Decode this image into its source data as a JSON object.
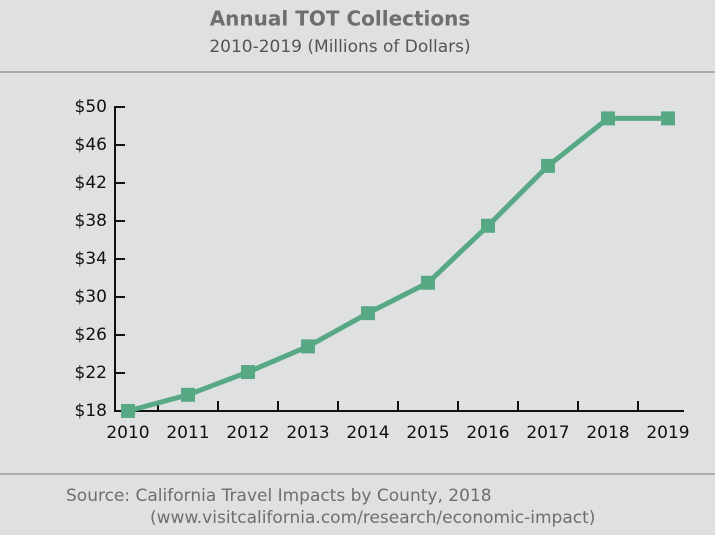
{
  "chart_data": {
    "type": "line",
    "title": "Annual TOT Collections",
    "subtitle": "2010-2019 (Millions of Dollars)",
    "source": [
      "Source: California Travel Impacts by County, 2018",
      "(www.visitcalifornia.com/research/economic-impact)"
    ],
    "categories": [
      "2010",
      "2011",
      "2012",
      "2013",
      "2014",
      "2015",
      "2016",
      "2017",
      "2018",
      "2019"
    ],
    "series": [
      {
        "name": "Annual TOT Collections",
        "color": "#57a884",
        "values": [
          18,
          19.7,
          22.1,
          24.8,
          28.3,
          31.5,
          37.5,
          43.8,
          48.8,
          48.8
        ]
      }
    ],
    "ylim": [
      18,
      50
    ],
    "yticks": [
      {
        "value": 18,
        "label": "$18"
      },
      {
        "value": 22,
        "label": "$22"
      },
      {
        "value": 26,
        "label": "$26"
      },
      {
        "value": 30,
        "label": "$30"
      },
      {
        "value": 34,
        "label": "$34"
      },
      {
        "value": 38,
        "label": "$38"
      },
      {
        "value": 42,
        "label": "$42"
      },
      {
        "value": 46,
        "label": "$46"
      },
      {
        "value": 50,
        "label": "$50"
      }
    ],
    "grid": false
  }
}
